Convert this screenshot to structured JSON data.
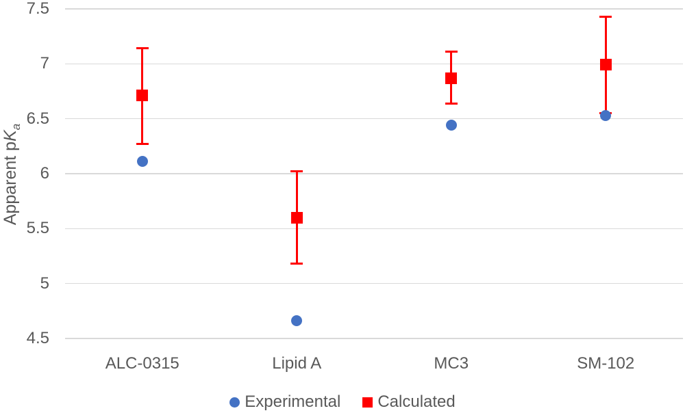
{
  "chart_data": {
    "type": "scatter",
    "ylabel": "Apparent pKa",
    "ylabel_parts": {
      "prefix": "Apparent p",
      "italic": "K",
      "subscript": "a"
    },
    "categories": [
      "ALC-0315",
      "Lipid A",
      "MC3",
      "SM-102"
    ],
    "ylim": [
      4.5,
      7.5
    ],
    "ytick_labels": [
      "7.5",
      "7",
      "6.5",
      "6",
      "5.5",
      "5",
      "4.5"
    ],
    "grid": true,
    "legend_position": "bottom",
    "series": [
      {
        "name": "Experimental",
        "marker": "circle",
        "color": "#4472C4",
        "values": [
          6.11,
          4.66,
          6.44,
          6.53
        ]
      },
      {
        "name": "Calculated",
        "marker": "square",
        "color": "#FF0000",
        "values": [
          6.71,
          5.6,
          6.87,
          6.99
        ],
        "error_low": [
          6.27,
          5.18,
          6.64,
          6.55
        ],
        "error_high": [
          7.14,
          6.02,
          7.11,
          7.43
        ]
      }
    ],
    "colors": {
      "gridline": "#D9D9D9",
      "text": "#595959"
    }
  }
}
